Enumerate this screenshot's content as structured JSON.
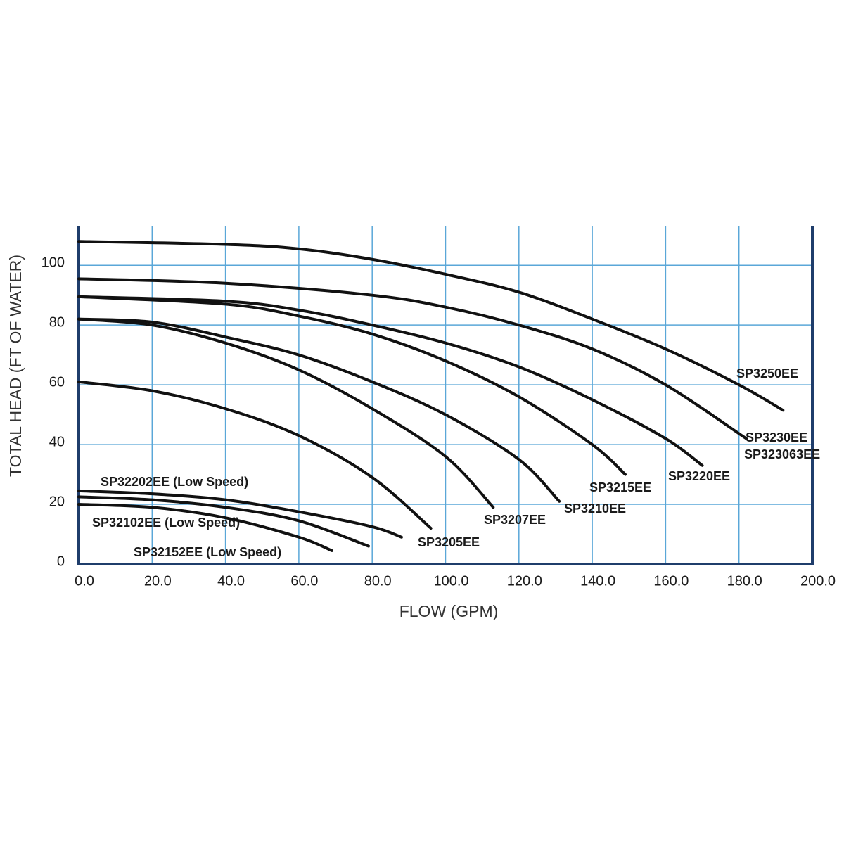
{
  "chart_data": {
    "type": "line",
    "x_label": "FLOW (GPM)",
    "y_label": "TOTAL HEAD (FT OF WATER)",
    "xlim": [
      0,
      200
    ],
    "ylim": [
      0,
      113
    ],
    "xticks": [
      {
        "value": 0,
        "label": "0.0"
      },
      {
        "value": 20,
        "label": "20.0"
      },
      {
        "value": 40,
        "label": "40.0"
      },
      {
        "value": 60,
        "label": "60.0"
      },
      {
        "value": 80,
        "label": "80.0"
      },
      {
        "value": 100,
        "label": "100.0"
      },
      {
        "value": 120,
        "label": "120.0"
      },
      {
        "value": 140,
        "label": "140.0"
      },
      {
        "value": 160,
        "label": "160.0"
      },
      {
        "value": 180,
        "label": "180.0"
      },
      {
        "value": 200,
        "label": "200.0"
      }
    ],
    "yticks": [
      0,
      20,
      40,
      60,
      80,
      100
    ],
    "grid": true,
    "grid_color": "#5aa7d8",
    "axis_color": "#1f3d6b",
    "series": [
      {
        "name": "SP3250EE",
        "color": "#111111",
        "x": [
          0,
          40,
          60,
          80,
          100,
          120,
          140,
          160,
          180,
          192
        ],
        "values": [
          108,
          107,
          105.5,
          102,
          97,
          91,
          82,
          72,
          60,
          51.5
        ]
      },
      {
        "name": "SP3230EE",
        "color": "#111111",
        "x": [
          0,
          40,
          80,
          100,
          120,
          140,
          160,
          182
        ],
        "values": [
          95.5,
          94,
          90,
          86,
          80,
          72,
          60,
          42
        ]
      },
      {
        "name": "SP3220EE",
        "color": "#111111",
        "x": [
          0,
          40,
          60,
          80,
          100,
          120,
          140,
          160,
          170
        ],
        "values": [
          89.5,
          88,
          85,
          80,
          74,
          66,
          55,
          42,
          33
        ]
      },
      {
        "name": "SP3215EE",
        "color": "#111111",
        "x": [
          0,
          40,
          60,
          80,
          100,
          120,
          140,
          149
        ],
        "values": [
          89.5,
          87,
          83,
          77,
          68,
          56,
          40,
          30
        ]
      },
      {
        "name": "SP3210EE",
        "color": "#111111",
        "x": [
          0,
          20,
          40,
          60,
          80,
          100,
          120,
          131
        ],
        "values": [
          82,
          81,
          76,
          70,
          61,
          50,
          35,
          21
        ]
      },
      {
        "name": "SP3207EE",
        "color": "#111111",
        "x": [
          0,
          20,
          40,
          60,
          80,
          100,
          113
        ],
        "values": [
          82,
          80,
          74,
          65,
          52,
          36,
          19
        ]
      },
      {
        "name": "SP3205EE",
        "color": "#111111",
        "x": [
          0,
          20,
          40,
          60,
          80,
          96
        ],
        "values": [
          61,
          58,
          52,
          43,
          29,
          12
        ]
      },
      {
        "name": "SP32202EE (Low Speed)",
        "color": "#111111",
        "x": [
          0,
          20,
          40,
          60,
          80,
          88
        ],
        "values": [
          24.5,
          23.5,
          21.5,
          17.5,
          12.5,
          9
        ]
      },
      {
        "name": "SP32102EE (Low Speed)",
        "color": "#111111",
        "x": [
          0,
          20,
          40,
          60,
          79
        ],
        "values": [
          22.5,
          21.5,
          19,
          14.5,
          6
        ]
      },
      {
        "name": "SP32152EE (Low Speed)",
        "color": "#111111",
        "x": [
          0,
          20,
          40,
          60,
          69
        ],
        "values": [
          20,
          19,
          15.5,
          9,
          4.5
        ]
      }
    ],
    "annotations": [
      "SP323063EE"
    ]
  }
}
